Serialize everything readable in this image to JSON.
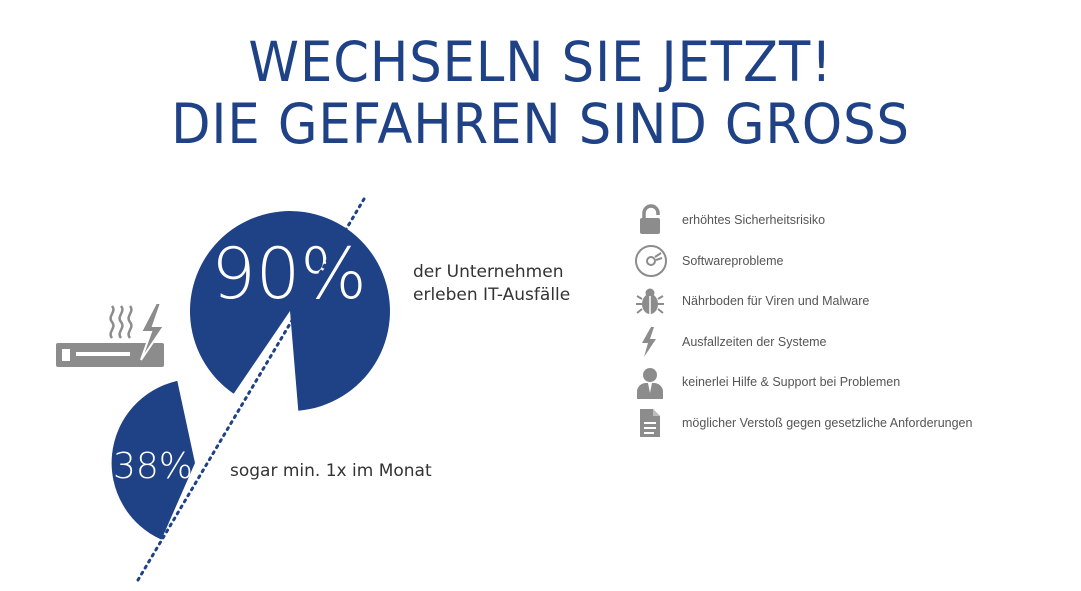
{
  "headline": {
    "line1": "WECHSELN SIE JETZT!",
    "line2": "DIE GEFAHREN SIND GROSS"
  },
  "stats": [
    {
      "value": "90%",
      "label_line1": "der Unternehmen",
      "label_line2": "erleben IT-Ausfälle"
    },
    {
      "value": "38%",
      "label_line1": "sogar min. 1x im Monat"
    }
  ],
  "risks": [
    {
      "icon": "lock-icon",
      "text": "erhöhtes Sicherheitsrisiko"
    },
    {
      "icon": "cd-disc-icon",
      "text": "Softwareprobleme"
    },
    {
      "icon": "bug-icon",
      "text": "Nährboden für Viren und Malware"
    },
    {
      "icon": "lightning-icon",
      "text": "Ausfallzeiten der Systeme"
    },
    {
      "icon": "person-icon",
      "text": "keinerlei Hilfe & Support bei Problemen"
    },
    {
      "icon": "document-icon",
      "text": "möglicher Verstoß gegen gesetzliche Anforderungen"
    }
  ],
  "colors": {
    "brand_blue": "#1f4185",
    "icon_gray": "#8c8c8c",
    "text_dark": "#333333"
  }
}
